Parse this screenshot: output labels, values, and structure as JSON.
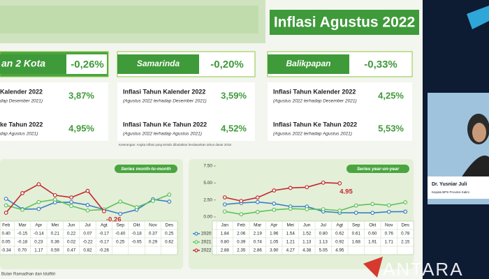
{
  "header": {
    "title": "Inflasi Agustus 2022"
  },
  "cards": [
    {
      "name": "an 2 Kota",
      "value": "-0,26%",
      "rows": [
        {
          "label": "Kalender 2022",
          "note": "dap Desember 2021)",
          "value": "3,87%"
        },
        {
          "label": "ke Tahun 2022",
          "note": "dap Agustus 2021)",
          "value": "4,95%"
        }
      ]
    },
    {
      "name": "Samarinda",
      "value": "-0,20%",
      "rows": [
        {
          "label": "Inflasi Tahun Kalender 2022",
          "note": "(Agustus 2022 terhadap Desember 2021)",
          "value": "3,59%"
        },
        {
          "label": "Inflasi Tahun Ke Tahun 2022",
          "note": "(Agustus 2022 terhadap Agustus 2021)",
          "value": "4,52%"
        }
      ]
    },
    {
      "name": "Balikpapan",
      "value": "-0,33%",
      "rows": [
        {
          "label": "Inflasi Tahun Kalender 2022",
          "note": "(Agustus 2022 terhadap Desember 2021)",
          "value": "4,25%"
        },
        {
          "label": "Inflasi Tahun Ke Tahun 2022",
          "note": "(Agustus 2022 terhadap Agustus 2021)",
          "value": "5,53%"
        }
      ]
    }
  ],
  "note": "Keterangan: Angka inflasi yang tertulis dibulatkan berdasarkan tahun dasar 2018",
  "chart_data": [
    {
      "type": "line",
      "subtitle": "Series month-to-month",
      "categories": [
        "Feb",
        "Mar",
        "Apr",
        "Mei",
        "Jun",
        "Jul",
        "Agt",
        "Sep",
        "Okt",
        "Nov",
        "Des"
      ],
      "ylim": [
        -0.6,
        1.4
      ],
      "annotation": "-0.26",
      "series": [
        {
          "color": "#3a7fc4",
          "values": [
            0.4,
            -0.15,
            -0.14,
            0.21,
            0.22,
            0.07,
            -0.17,
            -0.4,
            -0.18,
            0.37,
            0.25
          ],
          "value_labels": [
            "0.40",
            "-0.15",
            "-0.14",
            "0.21",
            "0.22",
            "0.07",
            "-0.17",
            "-0.40",
            "-0.18",
            "0.37",
            "0.25"
          ]
        },
        {
          "color": "#5cc25a",
          "values": [
            0.05,
            -0.18,
            0.23,
            0.36,
            0.02,
            -0.22,
            -0.17,
            0.25,
            -0.05,
            0.29,
            0.62
          ],
          "value_labels": [
            "0.05",
            "-0.18",
            "0.23",
            "0.36",
            "0.02",
            "-0.22",
            "-0.17",
            "0.25",
            "-0.05",
            "0.29",
            "0.62"
          ]
        },
        {
          "color": "#c0282e",
          "values": [
            -0.34,
            0.7,
            1.17,
            0.59,
            0.47,
            0.82,
            -0.26,
            null,
            null,
            null,
            null
          ],
          "value_labels": [
            "-0.34",
            "0.70",
            "1.17",
            "0.59",
            "0.47",
            "0.82",
            "-0.26",
            null,
            null,
            null,
            null
          ]
        }
      ]
    },
    {
      "type": "line",
      "subtitle": "Series year-on-year",
      "categories": [
        "Jan",
        "Feb",
        "Mar",
        "Apr",
        "Mei",
        "Jun",
        "Jul",
        "Agt",
        "Sep",
        "Okt",
        "Nov",
        "Des"
      ],
      "ylim": [
        0,
        7.5
      ],
      "yticks": [
        {
          "value": 0,
          "label": "0.00"
        },
        {
          "value": 2.5,
          "label": "2.50"
        },
        {
          "value": 5,
          "label": "5.00"
        },
        {
          "value": 7.5,
          "label": "7.50"
        }
      ],
      "annotation": "4.95",
      "series": [
        {
          "name": "2020",
          "color": "#3a7fc4",
          "values": [
            1.84,
            2.06,
            2.19,
            1.96,
            1.54,
            1.52,
            0.8,
            0.62,
            0.61,
            0.6,
            0.76,
            0.78
          ],
          "value_labels": [
            "1.84",
            "2.06",
            "2.19",
            "1.96",
            "1.54",
            "1.52",
            "0.80",
            "0.62",
            "0.61",
            "0.60",
            "0.76",
            "0.78"
          ]
        },
        {
          "name": "2021",
          "color": "#5cc25a",
          "values": [
            0.8,
            0.39,
            0.74,
            1.05,
            1.21,
            1.13,
            1.13,
            0.92,
            1.68,
            1.91,
            1.71,
            2.15
          ],
          "value_labels": [
            "0.80",
            "0.39",
            "0.74",
            "1.05",
            "1.21",
            "1.13",
            "1.13",
            "0.92",
            "1.68",
            "1.91",
            "1.71",
            "2.15"
          ]
        },
        {
          "name": "2022",
          "color": "#c0282e",
          "values": [
            2.88,
            2.35,
            2.86,
            3.9,
            4.27,
            4.38,
            5.05,
            4.95,
            null,
            null,
            null,
            null
          ],
          "value_labels": [
            "2.88",
            "2.35",
            "2.86",
            "3.90",
            "4.27",
            "4.38",
            "5.05",
            "4.95",
            null,
            null,
            null,
            null
          ]
        }
      ]
    }
  ],
  "footnote": "Bulan Ramadhan dan Idulfitri",
  "speaker": {
    "name": "Dr. Yusniar Juli",
    "role": "Kepala BPS Provinsi Kalim"
  },
  "watermark": "ANTARA"
}
